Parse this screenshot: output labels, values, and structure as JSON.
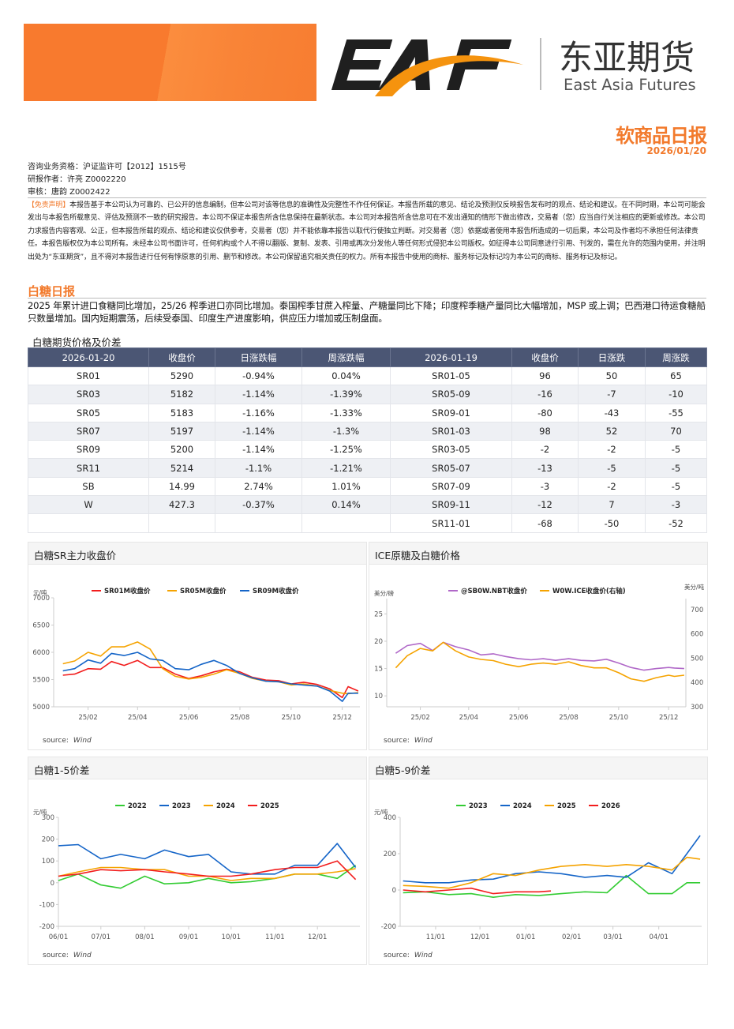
{
  "logo": {
    "mark": "EAF",
    "name_cn": "东亚期货",
    "name_en": "East Asia Futures"
  },
  "header": {
    "title": "软商品日报",
    "date": "2026/01/20"
  },
  "info": {
    "license": "咨询业务资格：沪证监许可【2012】1515号",
    "author": "研报作者：许亮 Z0002220",
    "reviewer": "审核：唐韵 Z0002422"
  },
  "disclaimer": {
    "tag": "【免责声明】",
    "text": "本报告基于本公司认为可靠的、已公开的信息编制，但本公司对该等信息的准确性及完整性不作任何保证。本报告所载的意见、结论及预测仅反映报告发布时的观点、结论和建议。在不同时期，本公司可能会发出与本报告所载意见、评估及预测不一致的研究报告。本公司不保证本报告所含信息保持在最新状态。本公司对本报告所含信息可在不发出通知的情形下做出修改，交易者（您）应当自行关注相应的更新或修改。本公司力求报告内容客观、公正，但本报告所载的观点、结论和建议仅供参考，交易者（您）并不能依靠本报告以取代行使独立判断。对交易者（您）依据或者使用本报告所造成的一切后果，本公司及作者均不承担任何法律责任。本报告版权仅为本公司所有。未经本公司书面许可，任何机构或个人不得以翻版、复制、发表、引用或再次分发他人等任何形式侵犯本公司版权。如征得本公司同意进行引用、刊发的，需在允许的范围内使用，并注明出处为“东亚期货”，且不得对本报告进行任何有悖原意的引用、删节和修改。本公司保留追究相关责任的权力。所有本报告中使用的商标、服务标记及标记均为本公司的商标、服务标记及标记。"
  },
  "section": {
    "title": "白糖日报",
    "summary": "2025 年累计进口食糖同比增加，25/26 榨季进口亦同比增加。泰国榨季甘蔗入榨量、产糖量同比下降；印度榨季糖产量同比大幅增加，MSP 或上调；巴西港口待运食糖船只数量增加。国内短期震荡，后续受泰国、印度生产进度影响，供应压力增加或压制盘面。"
  },
  "table": {
    "title": "白糖期货价格及价差",
    "headers": [
      "2026-01-20",
      "收盘价",
      "日涨跌幅",
      "周涨跌幅",
      "2026-01-19",
      "收盘价",
      "日涨跌",
      "周涨跌"
    ],
    "rows": [
      [
        "SR01",
        "5290",
        "-0.94%",
        "0.04%",
        "SR01-05",
        "96",
        "50",
        "65"
      ],
      [
        "SR03",
        "5182",
        "-1.14%",
        "-1.39%",
        "SR05-09",
        "-16",
        "-7",
        "-10"
      ],
      [
        "SR05",
        "5183",
        "-1.16%",
        "-1.33%",
        "SR09-01",
        "-80",
        "-43",
        "-55"
      ],
      [
        "SR07",
        "5197",
        "-1.14%",
        "-1.3%",
        "SR01-03",
        "98",
        "52",
        "70"
      ],
      [
        "SR09",
        "5200",
        "-1.14%",
        "-1.25%",
        "SR03-05",
        "-2",
        "-2",
        "-5"
      ],
      [
        "SR11",
        "5214",
        "-1.1%",
        "-1.21%",
        "SR05-07",
        "-13",
        "-5",
        "-5"
      ],
      [
        "SB",
        "14.99",
        "2.74%",
        "1.01%",
        "SR07-09",
        "-3",
        "-2",
        "-5"
      ],
      [
        "W",
        "427.3",
        "-0.37%",
        "0.14%",
        "SR09-11",
        "-12",
        "7",
        "-3"
      ],
      [
        "",
        "",
        "",
        "",
        "SR11-01",
        "-68",
        "-50",
        "-52"
      ]
    ]
  },
  "colors": {
    "accent": "#f27a2c",
    "table_header": "#4b5674"
  },
  "source_label": "source:",
  "source_value": "Wind",
  "chart_data": [
    {
      "type": "line",
      "title": "白糖SR主力收盘价",
      "ylabel": "元/吨",
      "xlim": [
        "2024-12-22",
        "2025-12-22"
      ],
      "ylim": [
        5000,
        7000
      ],
      "yticks": [
        5000,
        5500,
        6000,
        6500,
        7000
      ],
      "xticks": [
        {
          "value": "2025-02-01",
          "label": "25/02"
        },
        {
          "value": "2025-04-01",
          "label": "25/04"
        },
        {
          "value": "2025-06-01",
          "label": "25/06"
        },
        {
          "value": "2025-08-01",
          "label": "25/08"
        },
        {
          "value": "2025-10-01",
          "label": "25/10"
        },
        {
          "value": "2025-12-01",
          "label": "25/12"
        }
      ],
      "grid": false,
      "legend": "top",
      "x": [
        "2025-01-02",
        "2025-01-16",
        "2025-02-01",
        "2025-02-16",
        "2025-03-01",
        "2025-03-16",
        "2025-04-01",
        "2025-04-16",
        "2025-05-01",
        "2025-05-16",
        "2025-06-01",
        "2025-06-16",
        "2025-07-01",
        "2025-07-16",
        "2025-08-01",
        "2025-08-16",
        "2025-09-01",
        "2025-09-16",
        "2025-10-01",
        "2025-10-16",
        "2025-11-01",
        "2025-11-16",
        "2025-12-01",
        "2025-12-08",
        "2025-12-20"
      ],
      "series": [
        {
          "name": "SR01M收盘价",
          "color": "#f21d1d",
          "values": [
            5580,
            5600,
            5700,
            5690,
            5830,
            5760,
            5850,
            5720,
            5720,
            5600,
            5520,
            5570,
            5640,
            5690,
            5640,
            5540,
            5490,
            5480,
            5420,
            5450,
            5410,
            5330,
            5170,
            5370,
            5290
          ]
        },
        {
          "name": "SR05M收盘价",
          "color": "#f5a300",
          "values": [
            5790,
            5840,
            6000,
            5930,
            6100,
            6100,
            6190,
            6060,
            5700,
            5560,
            5510,
            5540,
            5600,
            5680,
            5610,
            5520,
            5470,
            5460,
            5400,
            5420,
            5380,
            5300,
            5250,
            5240,
            5260
          ]
        },
        {
          "name": "SR09M收盘价",
          "color": "#1565c8",
          "values": [
            5660,
            5700,
            5860,
            5800,
            5980,
            5940,
            6000,
            5880,
            5850,
            5700,
            5680,
            5780,
            5850,
            5760,
            5610,
            5530,
            5470,
            5460,
            5420,
            5400,
            5380,
            5290,
            5100,
            5250,
            5250
          ]
        }
      ]
    },
    {
      "type": "line",
      "title": "ICE原糖及白糖价格",
      "ylabel": "美分/磅",
      "y2label": "美分/吨",
      "xlim": [
        "2024-12-22",
        "2025-12-22"
      ],
      "ylim": [
        8,
        27.8
      ],
      "y2lim": [
        300,
        745
      ],
      "yticks": [
        10,
        15,
        20,
        25
      ],
      "y2ticks": [
        300,
        400,
        500,
        600,
        700
      ],
      "xticks": [
        {
          "value": "2025-02-01",
          "label": "25/02"
        },
        {
          "value": "2025-04-01",
          "label": "25/04"
        },
        {
          "value": "2025-06-01",
          "label": "25/06"
        },
        {
          "value": "2025-08-01",
          "label": "25/08"
        },
        {
          "value": "2025-10-01",
          "label": "25/10"
        },
        {
          "value": "2025-12-01",
          "label": "25/12"
        }
      ],
      "grid": false,
      "legend": "top",
      "x": [
        "2025-01-02",
        "2025-01-16",
        "2025-02-01",
        "2025-02-16",
        "2025-03-01",
        "2025-03-16",
        "2025-04-01",
        "2025-04-16",
        "2025-05-01",
        "2025-05-16",
        "2025-06-01",
        "2025-06-16",
        "2025-07-01",
        "2025-07-16",
        "2025-08-01",
        "2025-08-16",
        "2025-09-01",
        "2025-09-16",
        "2025-10-01",
        "2025-10-16",
        "2025-11-01",
        "2025-11-16",
        "2025-12-01",
        "2025-12-08",
        "2025-12-20"
      ],
      "series": [
        {
          "name": "@SB0W.NBT收盘价",
          "color": "#b068c8",
          "axis": "left",
          "values": [
            17.8,
            19.2,
            19.6,
            18.3,
            19.8,
            19.0,
            18.4,
            17.5,
            17.7,
            17.2,
            16.8,
            16.6,
            16.8,
            16.5,
            16.8,
            16.5,
            16.4,
            16.7,
            16.0,
            15.2,
            14.7,
            15.0,
            15.2,
            15.1,
            15.0
          ]
        },
        {
          "name": "W0W.ICE收盘价(右轴)",
          "color": "#f5a300",
          "axis": "right",
          "values": [
            460,
            510,
            540,
            530,
            565,
            530,
            505,
            495,
            490,
            475,
            465,
            475,
            480,
            475,
            485,
            470,
            460,
            460,
            440,
            415,
            405,
            420,
            430,
            425,
            430
          ]
        }
      ]
    },
    {
      "type": "line",
      "title": "白糖1-5价差",
      "ylabel": "元/吨",
      "xlim": [
        "06-01",
        "12-31"
      ],
      "ylim": [
        -200,
        300
      ],
      "yticks": [
        -200,
        -100,
        0,
        100,
        200,
        300
      ],
      "xticks": [
        {
          "value": "06-01",
          "label": "06/01"
        },
        {
          "value": "07-01",
          "label": "07/01"
        },
        {
          "value": "08-01",
          "label": "08/01"
        },
        {
          "value": "09-01",
          "label": "09/01"
        },
        {
          "value": "10-01",
          "label": "10/01"
        },
        {
          "value": "11-01",
          "label": "11/01"
        },
        {
          "value": "12-01",
          "label": "12/01"
        }
      ],
      "grid": false,
      "legend": "top",
      "series": [
        {
          "name": "2022",
          "color": "#33cc33",
          "x": [
            "06-01",
            "06-15",
            "07-01",
            "07-15",
            "08-01",
            "08-15",
            "09-01",
            "09-15",
            "10-01",
            "10-15",
            "11-01",
            "11-15",
            "12-01",
            "12-15",
            "12-28"
          ],
          "values": [
            10,
            40,
            -10,
            -25,
            30,
            -5,
            0,
            20,
            0,
            5,
            20,
            40,
            40,
            20,
            80
          ]
        },
        {
          "name": "2023",
          "color": "#1565c8",
          "x": [
            "06-01",
            "06-15",
            "07-01",
            "07-15",
            "08-01",
            "08-15",
            "09-01",
            "09-15",
            "10-01",
            "10-15",
            "11-01",
            "11-15",
            "12-01",
            "12-15",
            "12-28"
          ],
          "values": [
            170,
            175,
            110,
            130,
            110,
            150,
            120,
            130,
            50,
            40,
            40,
            80,
            80,
            180,
            70
          ]
        },
        {
          "name": "2024",
          "color": "#f5a300",
          "x": [
            "06-01",
            "06-15",
            "07-01",
            "07-15",
            "08-01",
            "08-15",
            "09-01",
            "09-15",
            "10-01",
            "10-15",
            "11-01",
            "11-15",
            "12-01",
            "12-15",
            "12-28"
          ],
          "values": [
            30,
            50,
            70,
            70,
            60,
            60,
            30,
            30,
            10,
            20,
            20,
            40,
            40,
            50,
            65
          ]
        },
        {
          "name": "2025",
          "color": "#f21d1d",
          "x": [
            "06-01",
            "06-15",
            "07-01",
            "07-15",
            "08-01",
            "08-15",
            "09-01",
            "09-15",
            "10-01",
            "10-15",
            "11-01",
            "11-15",
            "12-01",
            "12-15",
            "12-28"
          ],
          "values": [
            30,
            40,
            60,
            55,
            60,
            50,
            40,
            30,
            30,
            40,
            60,
            70,
            70,
            100,
            15
          ]
        }
      ]
    },
    {
      "type": "line",
      "title": "白糖5-9价差",
      "ylabel": "元/吨",
      "xlim": [
        "10-08",
        "04-30"
      ],
      "ylim": [
        -200,
        400
      ],
      "yticks": [
        -200,
        0,
        200,
        400
      ],
      "xticks": [
        {
          "value": "11-01",
          "label": "11/01"
        },
        {
          "value": "12-01",
          "label": "12/01"
        },
        {
          "value": "01-01",
          "label": "01/01"
        },
        {
          "value": "02-01",
          "label": "02/01"
        },
        {
          "value": "03-01",
          "label": "03/01"
        },
        {
          "value": "04-01",
          "label": "04/01"
        }
      ],
      "grid": false,
      "legend": "top",
      "series": [
        {
          "name": "2023",
          "color": "#33cc33",
          "x": [
            "10-10",
            "10-25",
            "11-10",
            "11-25",
            "12-10",
            "12-25",
            "01-10",
            "01-25",
            "02-10",
            "02-25",
            "03-10",
            "03-25",
            "04-10",
            "04-20",
            "04-29"
          ],
          "values": [
            -15,
            -10,
            -25,
            -20,
            -40,
            -25,
            -30,
            -20,
            -10,
            -15,
            80,
            -20,
            -20,
            40,
            40
          ]
        },
        {
          "name": "2024",
          "color": "#1565c8",
          "x": [
            "10-10",
            "10-25",
            "11-10",
            "11-25",
            "12-10",
            "12-25",
            "01-10",
            "01-25",
            "02-10",
            "02-25",
            "03-10",
            "03-25",
            "04-10",
            "04-20",
            "04-29"
          ],
          "values": [
            50,
            40,
            40,
            55,
            60,
            90,
            100,
            90,
            70,
            80,
            70,
            150,
            90,
            200,
            300
          ]
        },
        {
          "name": "2025",
          "color": "#f5a300",
          "x": [
            "10-10",
            "10-25",
            "11-10",
            "11-25",
            "12-10",
            "12-25",
            "01-10",
            "01-25",
            "02-10",
            "02-25",
            "03-10",
            "03-25",
            "04-10",
            "04-20",
            "04-29"
          ],
          "values": [
            25,
            20,
            10,
            40,
            90,
            80,
            110,
            130,
            140,
            130,
            140,
            130,
            110,
            180,
            170
          ]
        },
        {
          "name": "2026",
          "color": "#f21d1d",
          "x": [
            "10-10",
            "10-25",
            "11-10",
            "11-25",
            "12-10",
            "12-25",
            "01-10",
            "01-18"
          ],
          "values": [
            0,
            -10,
            0,
            10,
            -20,
            -10,
            -10,
            -5
          ]
        }
      ]
    }
  ]
}
